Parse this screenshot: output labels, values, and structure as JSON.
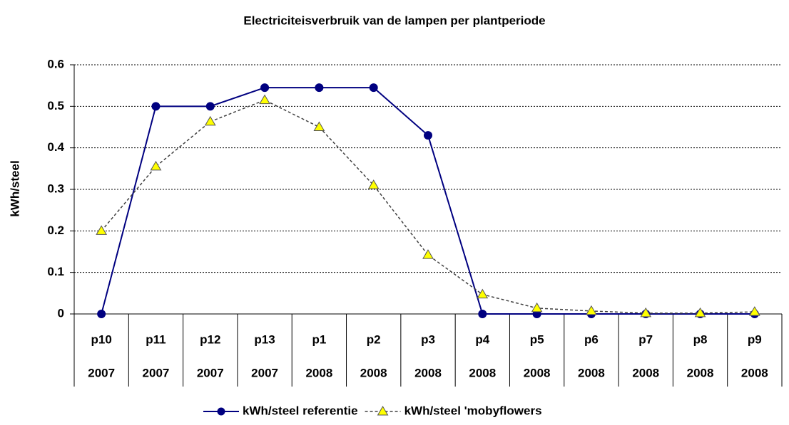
{
  "chart_data": {
    "type": "line",
    "title": "Electriciteisverbruik van de lampen per plantperiode",
    "y_label": "kWh/steel",
    "categories": [
      "p10",
      "p11",
      "p12",
      "p13",
      "p1",
      "p2",
      "p3",
      "p4",
      "p5",
      "p6",
      "p7",
      "p8",
      "p9"
    ],
    "category_years": [
      "2007",
      "2007",
      "2007",
      "2007",
      "2008",
      "2008",
      "2008",
      "2008",
      "2008",
      "2008",
      "2008",
      "2008",
      "2008"
    ],
    "series": [
      {
        "name": "kWh/steel referentie",
        "color": "#000080",
        "marker": "circle",
        "dashed": false,
        "values": [
          0,
          0.5,
          0.5,
          0.545,
          0.545,
          0.545,
          0.43,
          0,
          0,
          0,
          0,
          0,
          0
        ]
      },
      {
        "name": "kWh/steel 'mobyflowers",
        "color": "#ffff00",
        "marker": "triangle",
        "dashed": true,
        "values": [
          0.2,
          0.355,
          0.463,
          0.515,
          0.45,
          0.31,
          0.142,
          0.047,
          0.014,
          0.007,
          0.002,
          0.002,
          0.005
        ]
      }
    ],
    "ylim": [
      0,
      0.6
    ],
    "yticks": [
      0,
      0.1,
      0.2,
      0.3,
      0.4,
      0.5,
      0.6
    ],
    "grid": true,
    "legend": "bottom"
  }
}
